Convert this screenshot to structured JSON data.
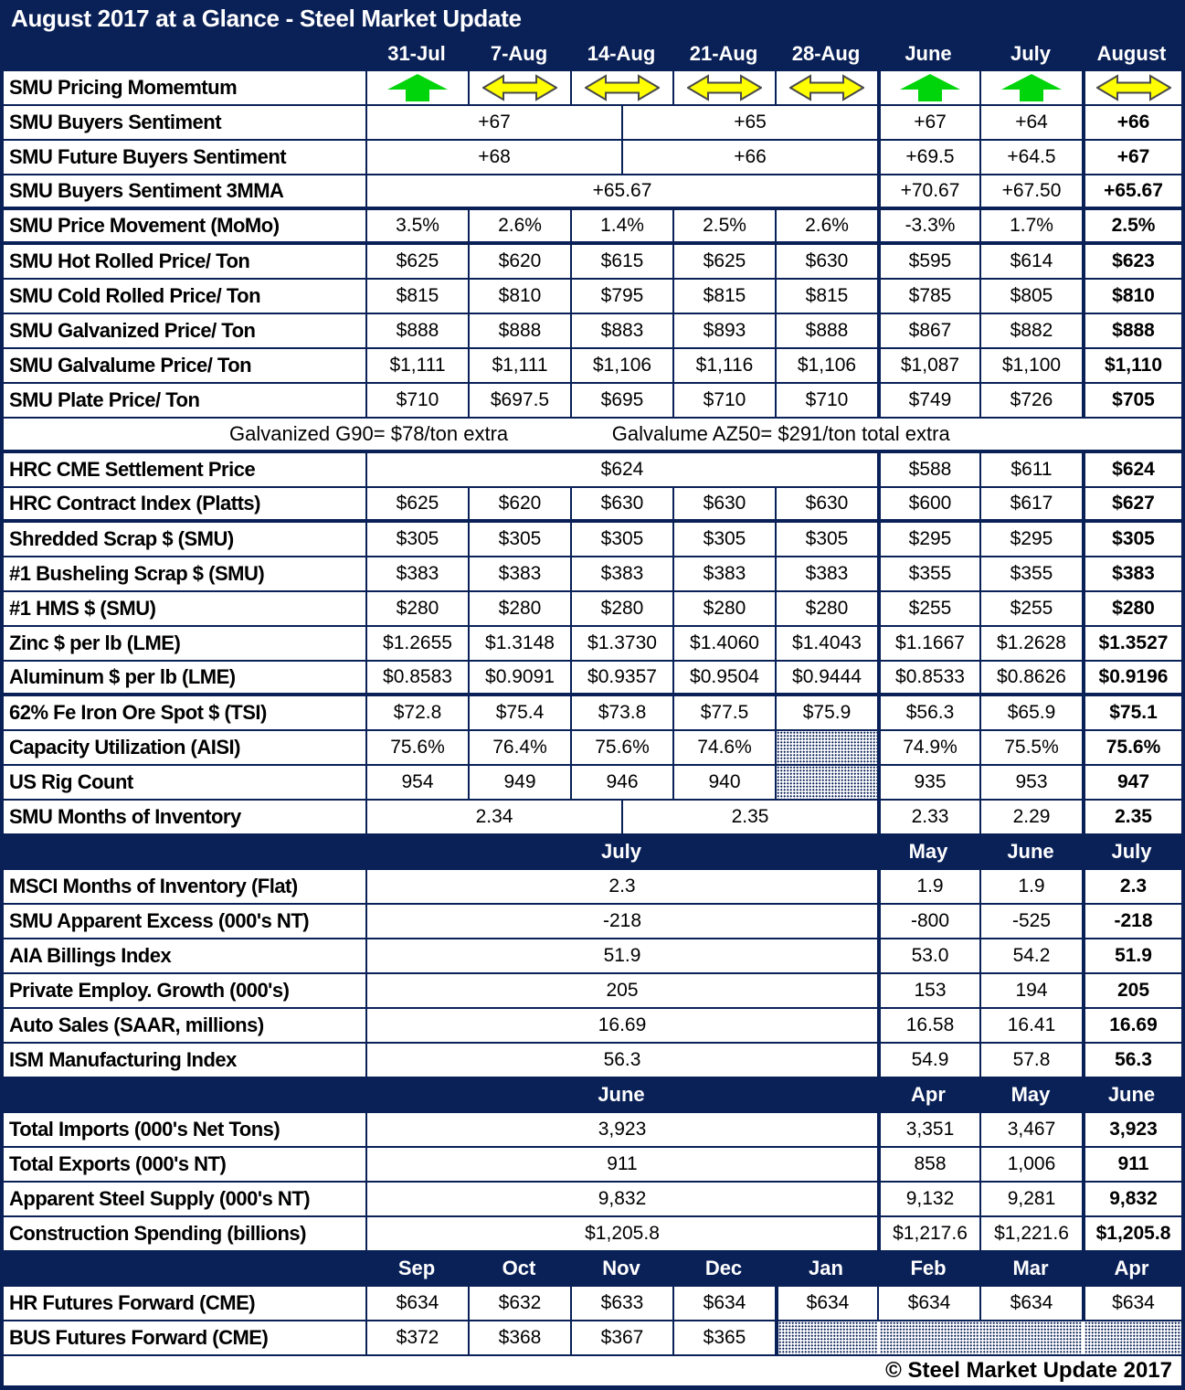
{
  "title": "August 2017 at a Glance - Steel Market Update",
  "footer_copyright": "© Steel Market Update 2017",
  "colors": {
    "navy": "#0a2158",
    "arrow_green": "#00d40a",
    "arrow_yellow": "#ffff00",
    "arrow_outline": "#4a4a4a"
  },
  "icons": {
    "up": "up-arrow-icon",
    "lr": "left-right-arrow-icon"
  },
  "date_columns": [
    "31-Jul",
    "7-Aug",
    "14-Aug",
    "21-Aug",
    "28-Aug",
    "June",
    "July",
    "August"
  ],
  "rows": [
    {
      "kind": "arrows",
      "label": "SMU Pricing Momemtum",
      "weekly": [
        "up",
        "lr",
        "lr",
        "lr",
        "lr"
      ],
      "monthly": [
        "up",
        "up",
        "lr"
      ]
    },
    {
      "kind": "split",
      "label": "SMU Buyers Sentiment",
      "weekly_left": "+67",
      "weekly_right": "+65",
      "monthly": [
        "+67",
        "+64",
        "+66"
      ]
    },
    {
      "kind": "split",
      "label": "SMU Future Buyers Sentiment",
      "weekly_left": "+68",
      "weekly_right": "+66",
      "monthly": [
        "+69.5",
        "+64.5",
        "+67"
      ]
    },
    {
      "kind": "merged",
      "label": "SMU Buyers Sentiment 3MMA",
      "weekly": "+65.67",
      "monthly": [
        "+70.67",
        "+67.50",
        "+65.67"
      ],
      "thick_bottom": true
    },
    {
      "kind": "cells",
      "label": "SMU Price Movement (MoMo)",
      "weekly": [
        "3.5%",
        "2.6%",
        "1.4%",
        "2.5%",
        "2.6%"
      ],
      "monthly": [
        "-3.3%",
        "1.7%",
        "2.5%"
      ],
      "thick_bottom": true
    },
    {
      "kind": "cells",
      "label": "SMU Hot Rolled Price/ Ton",
      "weekly": [
        "$625",
        "$620",
        "$615",
        "$625",
        "$630"
      ],
      "monthly": [
        "$595",
        "$614",
        "$623"
      ]
    },
    {
      "kind": "cells",
      "label": "SMU Cold Rolled Price/ Ton",
      "weekly": [
        "$815",
        "$810",
        "$795",
        "$815",
        "$815"
      ],
      "monthly": [
        "$785",
        "$805",
        "$810"
      ]
    },
    {
      "kind": "cells",
      "label": "SMU Galvanized Price/ Ton",
      "weekly": [
        "$888",
        "$888",
        "$883",
        "$893",
        "$888"
      ],
      "monthly": [
        "$867",
        "$882",
        "$888"
      ]
    },
    {
      "kind": "cells",
      "label": "SMU Galvalume Price/ Ton",
      "weekly": [
        "$1,111",
        "$1,111",
        "$1,106",
        "$1,116",
        "$1,106"
      ],
      "monthly": [
        "$1,087",
        "$1,100",
        "$1,110"
      ]
    },
    {
      "kind": "cells",
      "label": "SMU Plate Price/ Ton",
      "weekly": [
        "$710",
        "$697.5",
        "$695",
        "$710",
        "$710"
      ],
      "monthly": [
        "$749",
        "$726",
        "$705"
      ]
    },
    {
      "kind": "note",
      "text_left": "Galvanized G90= $78/ton extra",
      "text_right": "Galvalume AZ50= $291/ton total extra",
      "thick_bottom": true
    },
    {
      "kind": "merged",
      "label": "HRC CME Settlement Price",
      "weekly": "$624",
      "monthly": [
        "$588",
        "$611",
        "$624"
      ]
    },
    {
      "kind": "cells",
      "label": "HRC Contract Index (Platts)",
      "weekly": [
        "$625",
        "$620",
        "$630",
        "$630",
        "$630"
      ],
      "monthly": [
        "$600",
        "$617",
        "$627"
      ],
      "thick_bottom": true
    },
    {
      "kind": "cells",
      "label": "Shredded Scrap $ (SMU)",
      "weekly": [
        "$305",
        "$305",
        "$305",
        "$305",
        "$305"
      ],
      "monthly": [
        "$295",
        "$295",
        "$305"
      ]
    },
    {
      "kind": "cells",
      "label": "#1 Busheling Scrap $ (SMU)",
      "weekly": [
        "$383",
        "$383",
        "$383",
        "$383",
        "$383"
      ],
      "monthly": [
        "$355",
        "$355",
        "$383"
      ]
    },
    {
      "kind": "cells",
      "label": "#1 HMS $ (SMU)",
      "weekly": [
        "$280",
        "$280",
        "$280",
        "$280",
        "$280"
      ],
      "monthly": [
        "$255",
        "$255",
        "$280"
      ]
    },
    {
      "kind": "cells",
      "label": "Zinc $ per lb (LME)",
      "weekly": [
        "$1.2655",
        "$1.3148",
        "$1.3730",
        "$1.4060",
        "$1.4043"
      ],
      "monthly": [
        "$1.1667",
        "$1.2628",
        "$1.3527"
      ]
    },
    {
      "kind": "cells",
      "label": "Aluminum $ per lb (LME)",
      "weekly": [
        "$0.8583",
        "$0.9091",
        "$0.9357",
        "$0.9504",
        "$0.9444"
      ],
      "monthly": [
        "$0.8533",
        "$0.8626",
        "$0.9196"
      ],
      "thick_bottom": true
    },
    {
      "kind": "cells",
      "label": "62% Fe Iron Ore Spot $ (TSI)",
      "weekly": [
        "$72.8",
        "$75.4",
        "$73.8",
        "$77.5",
        "$75.9"
      ],
      "monthly": [
        "$56.3",
        "$65.9",
        "$75.1"
      ]
    },
    {
      "kind": "cells",
      "label": "Capacity Utilization (AISI)",
      "weekly": [
        "75.6%",
        "76.4%",
        "75.6%",
        "74.6%",
        {
          "hatch": true
        }
      ],
      "monthly": [
        "74.9%",
        "75.5%",
        "75.6%"
      ]
    },
    {
      "kind": "cells",
      "label": "US Rig Count",
      "weekly": [
        "954",
        "949",
        "946",
        "940",
        {
          "hatch": true
        }
      ],
      "monthly": [
        "935",
        "953",
        "947"
      ]
    },
    {
      "kind": "split",
      "label": "SMU Months of Inventory",
      "weekly_left": "2.34",
      "weekly_right": "2.35",
      "monthly": [
        "2.33",
        "2.29",
        "2.35"
      ]
    },
    {
      "kind": "subheader",
      "weekly": "July",
      "monthly": [
        "May",
        "June",
        "July"
      ]
    },
    {
      "kind": "merged",
      "label": "MSCI Months of Inventory (Flat)",
      "weekly": "2.3",
      "monthly": [
        "1.9",
        "1.9",
        "2.3"
      ]
    },
    {
      "kind": "merged",
      "label": "SMU Apparent Excess (000's NT)",
      "weekly": "-218",
      "monthly": [
        "-800",
        "-525",
        "-218"
      ]
    },
    {
      "kind": "merged",
      "label": "AIA Billings Index",
      "weekly": "51.9",
      "monthly": [
        "53.0",
        "54.2",
        "51.9"
      ]
    },
    {
      "kind": "merged",
      "label": "Private Employ. Growth (000's)",
      "weekly": "205",
      "monthly": [
        "153",
        "194",
        "205"
      ]
    },
    {
      "kind": "merged",
      "label": "Auto Sales (SAAR, millions)",
      "weekly": "16.69",
      "monthly": [
        "16.58",
        "16.41",
        "16.69"
      ]
    },
    {
      "kind": "merged",
      "label": "ISM Manufacturing Index",
      "weekly": "56.3",
      "monthly": [
        "54.9",
        "57.8",
        "56.3"
      ]
    },
    {
      "kind": "subheader",
      "weekly": "June",
      "monthly": [
        "Apr",
        "May",
        "June"
      ]
    },
    {
      "kind": "merged",
      "label": "Total Imports (000's Net Tons)",
      "weekly": "3,923",
      "monthly": [
        "3,351",
        "3,467",
        "3,923"
      ]
    },
    {
      "kind": "merged",
      "label": "Total Exports (000's NT)",
      "weekly": "911",
      "monthly": [
        "858",
        "1,006",
        "911"
      ]
    },
    {
      "kind": "merged",
      "label": "Apparent Steel Supply (000's NT)",
      "weekly": "9,832",
      "monthly": [
        "9,132",
        "9,281",
        "9,832"
      ]
    },
    {
      "kind": "merged",
      "label": "Construction Spending (billions)",
      "weekly": "$1,205.8",
      "monthly": [
        "$1,217.6",
        "$1,221.6",
        "$1,205.8"
      ]
    },
    {
      "kind": "subheader8",
      "cells": [
        "Sep",
        "Oct",
        "Nov",
        "Dec",
        "Jan",
        "Feb",
        "Mar",
        "Apr"
      ]
    },
    {
      "kind": "cells8",
      "label": "HR Futures Forward (CME)",
      "cells": [
        "$634",
        "$632",
        "$633",
        "$634",
        "$634",
        "$634",
        "$634",
        "$634"
      ]
    },
    {
      "kind": "cells8",
      "label": "BUS Futures Forward (CME)",
      "cells": [
        "$372",
        "$368",
        "$367",
        "$365",
        {
          "hatch": true,
          "sep": "thick"
        },
        {
          "hatch": true,
          "sep": "white"
        },
        {
          "hatch": true,
          "sep": "none"
        },
        {
          "hatch": true,
          "sep": "white"
        }
      ]
    }
  ]
}
